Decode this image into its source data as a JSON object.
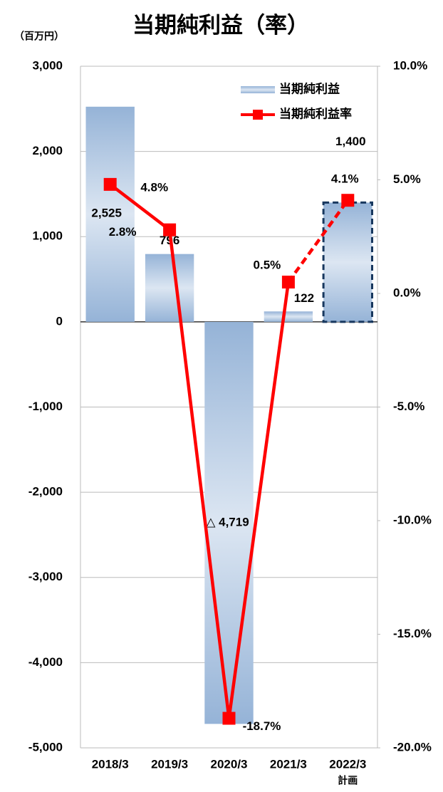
{
  "chart_data": {
    "type": "bar_line",
    "title": "当期純利益（率）",
    "y_label": "（百万円）",
    "categories": [
      "2018/3",
      "2019/3",
      "2020/3",
      "2021/3",
      "2022/3"
    ],
    "annotations": [
      {
        "category": 4,
        "text": "計画"
      }
    ],
    "series": [
      {
        "name": "当期純利益",
        "type": "bar",
        "color": "#95b3d7",
        "axis": "y",
        "values": [
          2525,
          796,
          -4719,
          122,
          1400
        ],
        "value_labels": [
          "2,525",
          "796",
          "△ 4,719",
          "122",
          "1,400"
        ],
        "dash_last": true
      },
      {
        "name": "当期純利益率",
        "type": "line",
        "color": "#ff0000",
        "axis": "y2",
        "values": [
          4.8,
          2.8,
          -18.7,
          0.5,
          4.1
        ],
        "value_labels": [
          "4.8%",
          "2.8%",
          "-18.7%",
          "0.5%",
          "4.1%"
        ],
        "dash_last": true
      }
    ],
    "ylim": [
      -5000,
      3000
    ],
    "yticks": [
      {
        "value": 3000,
        "label": "3,000"
      },
      {
        "value": 2000,
        "label": "2,000"
      },
      {
        "value": 1000,
        "label": "1,000"
      },
      0,
      {
        "value": -1000,
        "label": "-1,000"
      },
      {
        "value": -2000,
        "label": "-2,000"
      },
      {
        "value": -3000,
        "label": "-3,000"
      },
      {
        "value": -4000,
        "label": "-4,000"
      },
      {
        "value": -5000,
        "label": "-5,000"
      }
    ],
    "y2lim": [
      -20,
      10
    ],
    "y2ticks": [
      {
        "value": 10,
        "label": "10.0%"
      },
      {
        "value": 5,
        "label": "5.0%"
      },
      {
        "value": 0,
        "label": "0.0%"
      },
      {
        "value": -5,
        "label": "-5.0%"
      },
      {
        "value": -10,
        "label": "-10.0%"
      },
      {
        "value": -15,
        "label": "-15.0%"
      },
      {
        "value": -20,
        "label": "-20.0%"
      }
    ],
    "negative_tick_color": "#ff0000",
    "grid": true,
    "legend": "top-right"
  }
}
